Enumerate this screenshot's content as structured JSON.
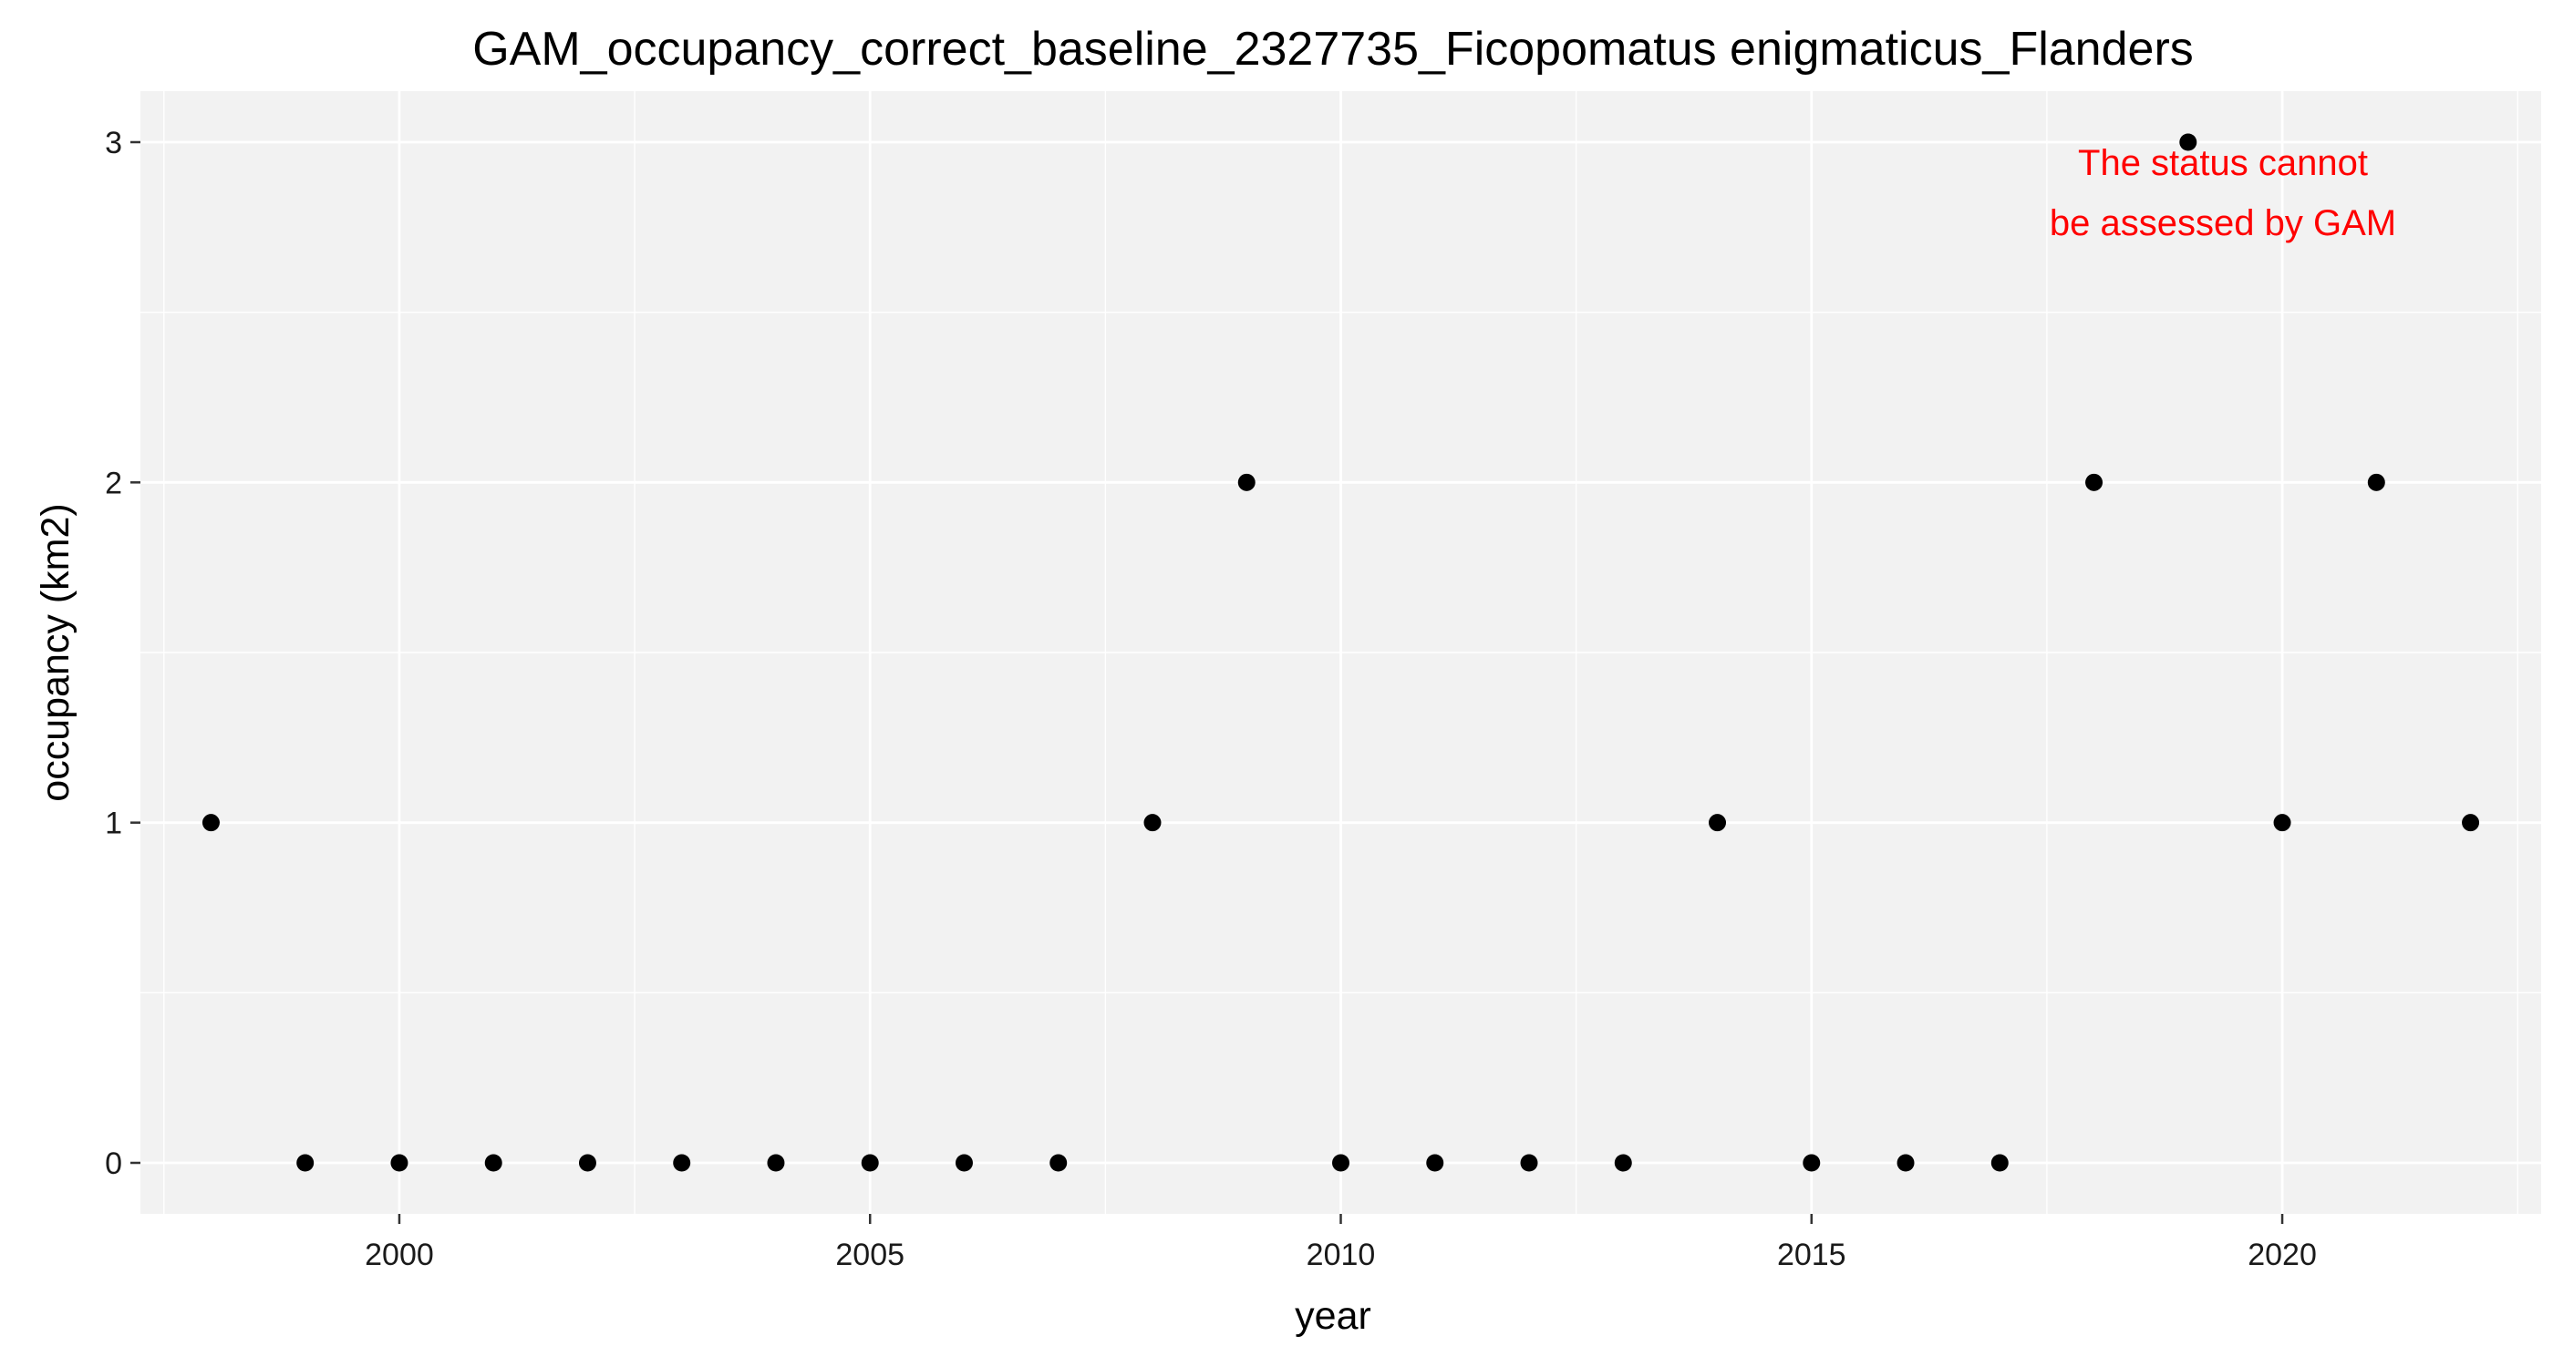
{
  "chart_data": {
    "type": "scatter",
    "title": "GAM_occupancy_correct_baseline_2327735_Ficopomatus enigmaticus_Flanders",
    "xlabel": "year",
    "ylabel": "occupancy (km2)",
    "x": [
      1998,
      1999,
      2000,
      2001,
      2002,
      2003,
      2004,
      2005,
      2006,
      2007,
      2008,
      2009,
      2010,
      2011,
      2012,
      2013,
      2014,
      2015,
      2016,
      2017,
      2018,
      2019,
      2020,
      2021,
      2022
    ],
    "y": [
      1,
      0,
      0,
      0,
      0,
      0,
      0,
      0,
      0,
      0,
      1,
      2,
      0,
      0,
      0,
      0,
      1,
      0,
      0,
      0,
      2,
      3,
      1,
      2,
      1
    ],
    "xlim": [
      1997.25,
      2022.75
    ],
    "ylim": [
      -0.15,
      3.15
    ],
    "x_ticks": [
      2000,
      2005,
      2010,
      2015,
      2020
    ],
    "y_ticks": [
      0,
      1,
      2,
      3
    ],
    "x_tick_labels": [
      "2000",
      "2005",
      "2010",
      "2015",
      "2020"
    ],
    "y_tick_labels": [
      "0",
      "1",
      "2",
      "3"
    ],
    "grid": true,
    "annotation": {
      "lines": [
        "The status cannot",
        "be assessed by GAM"
      ],
      "color": "#ff0000"
    },
    "colors": {
      "panel_background": "#f2f2f2",
      "grid": "#ffffff",
      "points": "#000000",
      "tick_marks": "#333333"
    }
  }
}
